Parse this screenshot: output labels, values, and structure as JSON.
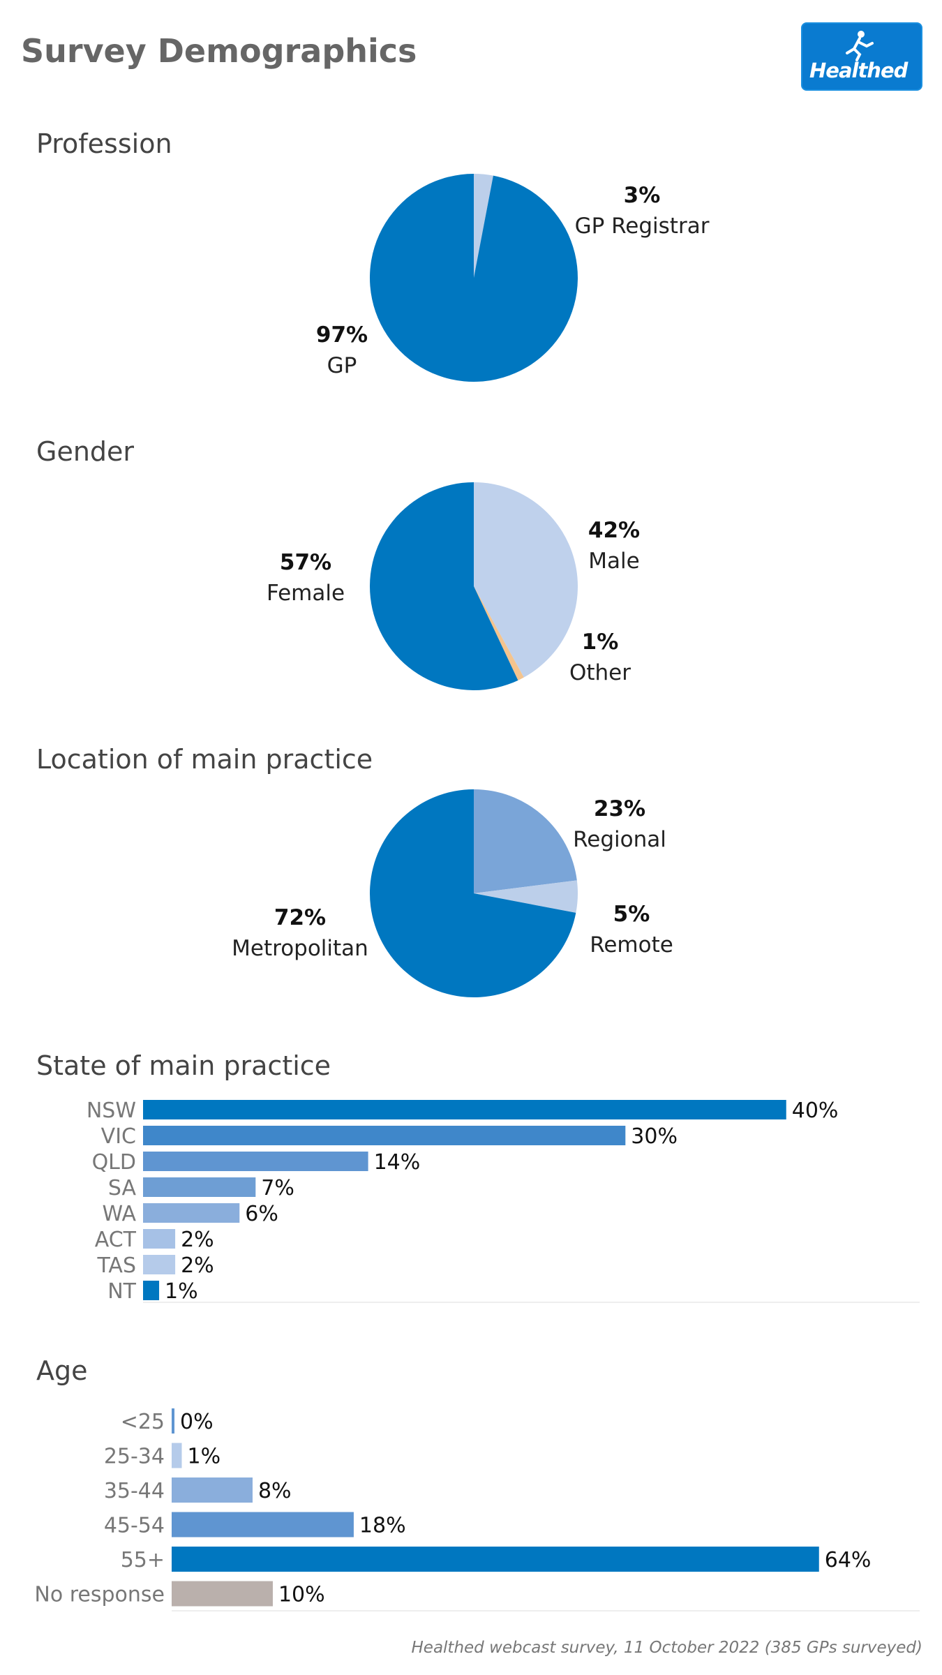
{
  "title": "Survey Demographics",
  "logo": {
    "text": "Healthed"
  },
  "footer": "Healthed webcast survey, 11 October 2022 (385 GPs surveyed)",
  "chart_data": [
    {
      "type": "pie",
      "title": "Profession",
      "slices": [
        {
          "label": "GP Registrar",
          "pct_label": "3%",
          "value": 3,
          "color": "#bccfea"
        },
        {
          "label": "GP",
          "pct_label": "97%",
          "value": 97,
          "color": "#0077c0"
        }
      ]
    },
    {
      "type": "pie",
      "title": "Gender",
      "slices": [
        {
          "label": "Male",
          "pct_label": "42%",
          "value": 42,
          "color": "#bfd1ec"
        },
        {
          "label": "Other",
          "pct_label": "1%",
          "value": 1,
          "color": "#f4c48e"
        },
        {
          "label": "Female",
          "pct_label": "57%",
          "value": 57,
          "color": "#0077c0"
        }
      ]
    },
    {
      "type": "pie",
      "title": "Location of main practice",
      "slices": [
        {
          "label": "Regional",
          "pct_label": "23%",
          "value": 23,
          "color": "#7aa5d8"
        },
        {
          "label": "Remote",
          "pct_label": "5%",
          "value": 5,
          "color": "#bccfea"
        },
        {
          "label": "Metropolitan",
          "pct_label": "72%",
          "value": 72,
          "color": "#0077c0"
        }
      ]
    },
    {
      "type": "bar",
      "title": "State of main practice",
      "categories": [
        "NSW",
        "VIC",
        "QLD",
        "SA",
        "WA",
        "ACT",
        "TAS",
        "NT"
      ],
      "values": [
        40,
        30,
        14,
        7,
        6,
        2,
        2,
        1
      ],
      "value_labels": [
        "40%",
        "30%",
        "14%",
        "7%",
        "6%",
        "2%",
        "2%",
        "1%"
      ],
      "colors": [
        "#0077c0",
        "#3f87ca",
        "#5f95d1",
        "#6e9ed4",
        "#8aaedc",
        "#a6c1e6",
        "#b5cbea",
        "#0077c0"
      ],
      "xlim": [
        0,
        46
      ]
    },
    {
      "type": "bar",
      "title": "Age",
      "categories": [
        "<25",
        "25-34",
        "35-44",
        "45-54",
        "55+",
        "No response"
      ],
      "values": [
        0,
        1,
        8,
        18,
        64,
        10
      ],
      "value_labels": [
        "0%",
        "1%",
        "8%",
        "18%",
        "64%",
        "10%"
      ],
      "colors": [
        "#5f95d1",
        "#b5cbea",
        "#8aaedc",
        "#5f95d1",
        "#0077c0",
        "#bab0ac"
      ],
      "xlim": [
        0,
        64.5
      ]
    }
  ]
}
